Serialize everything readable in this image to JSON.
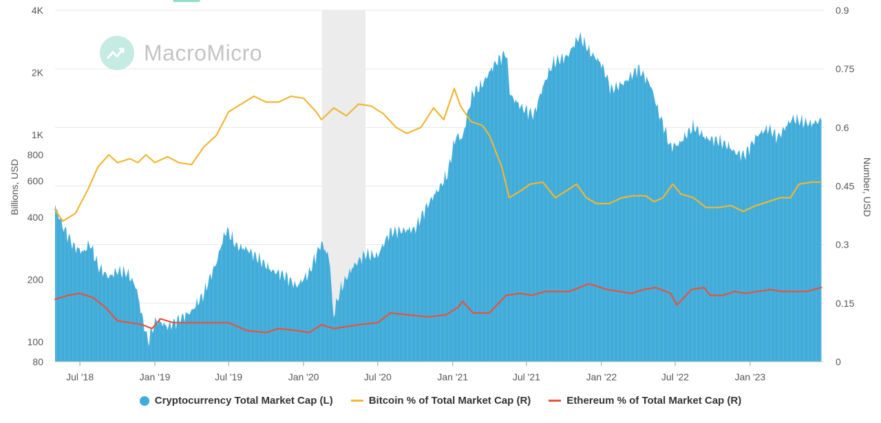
{
  "watermark": {
    "brand": "MacroMicro"
  },
  "colors": {
    "market_cap": "#41acd9",
    "bitcoin": "#f0b634",
    "ethereum": "#e8523b",
    "shade": "#ececec",
    "grid": "#e6e6e6"
  },
  "chart_data": {
    "type": "area",
    "title": "",
    "x_range": [
      "2018-05",
      "2023-06"
    ],
    "x_ticks": [
      {
        "date": "2018-07",
        "label": "Jul '18"
      },
      {
        "date": "2019-01",
        "label": "Jan '19"
      },
      {
        "date": "2019-07",
        "label": "Jul '19"
      },
      {
        "date": "2020-01",
        "label": "Jan '20"
      },
      {
        "date": "2020-07",
        "label": "Jul '20"
      },
      {
        "date": "2021-01",
        "label": "Jan '21"
      },
      {
        "date": "2021-07",
        "label": "Jul '21"
      },
      {
        "date": "2022-01",
        "label": "Jan '22"
      },
      {
        "date": "2022-07",
        "label": "Jul '22"
      },
      {
        "date": "2023-01",
        "label": "Jan '23"
      }
    ],
    "left_axis": {
      "label": "Billions, USD",
      "scale": "log",
      "range": [
        80,
        4000
      ],
      "ticks": [
        {
          "value": 80,
          "label": "80"
        },
        {
          "value": 100,
          "label": "100"
        },
        {
          "value": 200,
          "label": "200"
        },
        {
          "value": 400,
          "label": "400"
        },
        {
          "value": 600,
          "label": "600"
        },
        {
          "value": 800,
          "label": "800"
        },
        {
          "value": 1000,
          "label": "1K"
        },
        {
          "value": 2000,
          "label": "2K"
        },
        {
          "value": 4000,
          "label": "4K"
        }
      ]
    },
    "right_axis": {
      "label": "Number, USD",
      "scale": "linear",
      "range": [
        0,
        0.9
      ],
      "ticks": [
        {
          "value": 0,
          "label": "0"
        },
        {
          "value": 0.15,
          "label": "0.15"
        },
        {
          "value": 0.3,
          "label": "0.3"
        },
        {
          "value": 0.45,
          "label": "0.45"
        },
        {
          "value": 0.6,
          "label": "0.6"
        },
        {
          "value": 0.75,
          "label": "0.75"
        },
        {
          "value": 0.9,
          "label": "0.9"
        }
      ]
    },
    "shaded_region": {
      "start": "2020-02-15",
      "end": "2020-06-01"
    },
    "series": [
      {
        "name": "Cryptocurrency Total Market Cap (L)",
        "axis": "left",
        "style": "area",
        "color": "#41acd9",
        "points": [
          [
            "2018-05-01",
            450
          ],
          [
            "2018-05-20",
            360
          ],
          [
            "2018-06-15",
            290
          ],
          [
            "2018-07-10",
            270
          ],
          [
            "2018-07-25",
            300
          ],
          [
            "2018-08-15",
            230
          ],
          [
            "2018-09-10",
            205
          ],
          [
            "2018-10-01",
            220
          ],
          [
            "2018-10-25",
            215
          ],
          [
            "2018-11-15",
            185
          ],
          [
            "2018-12-01",
            130
          ],
          [
            "2018-12-15",
            100
          ],
          [
            "2019-01-05",
            128
          ],
          [
            "2019-02-01",
            118
          ],
          [
            "2019-03-01",
            128
          ],
          [
            "2019-04-01",
            140
          ],
          [
            "2019-05-01",
            170
          ],
          [
            "2019-06-01",
            240
          ],
          [
            "2019-06-26",
            350
          ],
          [
            "2019-07-20",
            290
          ],
          [
            "2019-08-15",
            280
          ],
          [
            "2019-09-15",
            250
          ],
          [
            "2019-10-15",
            220
          ],
          [
            "2019-11-15",
            210
          ],
          [
            "2019-12-15",
            185
          ],
          [
            "2020-01-15",
            215
          ],
          [
            "2020-02-14",
            300
          ],
          [
            "2020-03-05",
            250
          ],
          [
            "2020-03-13",
            130
          ],
          [
            "2020-04-01",
            180
          ],
          [
            "2020-05-01",
            230
          ],
          [
            "2020-06-01",
            265
          ],
          [
            "2020-07-01",
            260
          ],
          [
            "2020-08-01",
            340
          ],
          [
            "2020-09-01",
            345
          ],
          [
            "2020-10-01",
            350
          ],
          [
            "2020-11-01",
            460
          ],
          [
            "2020-12-01",
            560
          ],
          [
            "2020-12-20",
            650
          ],
          [
            "2021-01-10",
            1000
          ],
          [
            "2021-01-25",
            950
          ],
          [
            "2021-02-20",
            1600
          ],
          [
            "2021-03-15",
            1750
          ],
          [
            "2021-04-14",
            2200
          ],
          [
            "2021-05-12",
            2500
          ],
          [
            "2021-05-22",
            1550
          ],
          [
            "2021-06-20",
            1350
          ],
          [
            "2021-07-20",
            1250
          ],
          [
            "2021-08-15",
            1800
          ],
          [
            "2021-09-06",
            2250
          ],
          [
            "2021-10-10",
            2400
          ],
          [
            "2021-11-08",
            3000
          ],
          [
            "2021-12-05",
            2500
          ],
          [
            "2022-01-01",
            2200
          ],
          [
            "2022-01-25",
            1650
          ],
          [
            "2022-03-01",
            1800
          ],
          [
            "2022-04-01",
            2100
          ],
          [
            "2022-05-01",
            1750
          ],
          [
            "2022-05-20",
            1300
          ],
          [
            "2022-06-18",
            880
          ],
          [
            "2022-07-10",
            900
          ],
          [
            "2022-08-15",
            1100
          ],
          [
            "2022-09-15",
            960
          ],
          [
            "2022-10-15",
            940
          ],
          [
            "2022-11-10",
            880
          ],
          [
            "2022-11-25",
            820
          ],
          [
            "2022-12-20",
            800
          ],
          [
            "2023-01-20",
            1000
          ],
          [
            "2023-02-15",
            1080
          ],
          [
            "2023-03-10",
            970
          ],
          [
            "2023-04-15",
            1200
          ],
          [
            "2023-05-15",
            1150
          ],
          [
            "2023-06-01",
            1130
          ],
          [
            "2023-06-25",
            1180
          ]
        ]
      },
      {
        "name": "Bitcoin % of Total Market Cap (R)",
        "axis": "right",
        "style": "line",
        "color": "#f0b634",
        "points": [
          [
            "2018-05-01",
            0.39
          ],
          [
            "2018-05-20",
            0.36
          ],
          [
            "2018-06-20",
            0.38
          ],
          [
            "2018-07-20",
            0.44
          ],
          [
            "2018-08-15",
            0.5
          ],
          [
            "2018-09-10",
            0.53
          ],
          [
            "2018-10-01",
            0.51
          ],
          [
            "2018-11-01",
            0.52
          ],
          [
            "2018-11-20",
            0.51
          ],
          [
            "2018-12-10",
            0.53
          ],
          [
            "2019-01-01",
            0.51
          ],
          [
            "2019-02-01",
            0.525
          ],
          [
            "2019-03-01",
            0.51
          ],
          [
            "2019-04-01",
            0.505
          ],
          [
            "2019-05-01",
            0.55
          ],
          [
            "2019-06-01",
            0.58
          ],
          [
            "2019-07-01",
            0.64
          ],
          [
            "2019-08-01",
            0.66
          ],
          [
            "2019-09-01",
            0.68
          ],
          [
            "2019-10-01",
            0.665
          ],
          [
            "2019-11-01",
            0.665
          ],
          [
            "2019-12-01",
            0.68
          ],
          [
            "2020-01-01",
            0.675
          ],
          [
            "2020-02-01",
            0.64
          ],
          [
            "2020-02-14",
            0.62
          ],
          [
            "2020-03-15",
            0.65
          ],
          [
            "2020-04-15",
            0.63
          ],
          [
            "2020-05-15",
            0.66
          ],
          [
            "2020-06-15",
            0.655
          ],
          [
            "2020-07-15",
            0.635
          ],
          [
            "2020-08-15",
            0.6
          ],
          [
            "2020-09-10",
            0.585
          ],
          [
            "2020-10-15",
            0.6
          ],
          [
            "2020-11-15",
            0.65
          ],
          [
            "2020-12-10",
            0.62
          ],
          [
            "2021-01-05",
            0.7
          ],
          [
            "2021-01-20",
            0.655
          ],
          [
            "2021-02-15",
            0.615
          ],
          [
            "2021-03-15",
            0.605
          ],
          [
            "2021-04-01",
            0.58
          ],
          [
            "2021-05-01",
            0.5
          ],
          [
            "2021-05-20",
            0.42
          ],
          [
            "2021-06-20",
            0.44
          ],
          [
            "2021-07-10",
            0.455
          ],
          [
            "2021-08-10",
            0.46
          ],
          [
            "2021-09-10",
            0.42
          ],
          [
            "2021-10-10",
            0.44
          ],
          [
            "2021-11-01",
            0.455
          ],
          [
            "2021-11-25",
            0.42
          ],
          [
            "2021-12-20",
            0.405
          ],
          [
            "2022-01-20",
            0.405
          ],
          [
            "2022-02-20",
            0.42
          ],
          [
            "2022-03-20",
            0.425
          ],
          [
            "2022-04-20",
            0.425
          ],
          [
            "2022-05-10",
            0.41
          ],
          [
            "2022-06-01",
            0.42
          ],
          [
            "2022-06-25",
            0.455
          ],
          [
            "2022-07-15",
            0.43
          ],
          [
            "2022-08-15",
            0.42
          ],
          [
            "2022-09-15",
            0.395
          ],
          [
            "2022-10-15",
            0.395
          ],
          [
            "2022-11-15",
            0.4
          ],
          [
            "2022-12-15",
            0.385
          ],
          [
            "2023-01-15",
            0.4
          ],
          [
            "2023-02-15",
            0.41
          ],
          [
            "2023-03-15",
            0.42
          ],
          [
            "2023-04-10",
            0.42
          ],
          [
            "2023-05-01",
            0.455
          ],
          [
            "2023-06-01",
            0.46
          ],
          [
            "2023-06-25",
            0.46
          ]
        ]
      },
      {
        "name": "Ethereum % of Total Market Cap (R)",
        "axis": "right",
        "style": "line",
        "color": "#e8523b",
        "points": [
          [
            "2018-05-01",
            0.16
          ],
          [
            "2018-06-01",
            0.17
          ],
          [
            "2018-07-01",
            0.175
          ],
          [
            "2018-08-01",
            0.165
          ],
          [
            "2018-09-01",
            0.14
          ],
          [
            "2018-10-01",
            0.105
          ],
          [
            "2018-11-01",
            0.1
          ],
          [
            "2018-12-01",
            0.095
          ],
          [
            "2018-12-25",
            0.085
          ],
          [
            "2019-01-15",
            0.11
          ],
          [
            "2019-02-15",
            0.1
          ],
          [
            "2019-04-01",
            0.1
          ],
          [
            "2019-05-15",
            0.1
          ],
          [
            "2019-07-01",
            0.1
          ],
          [
            "2019-08-15",
            0.08
          ],
          [
            "2019-10-01",
            0.075
          ],
          [
            "2019-11-01",
            0.085
          ],
          [
            "2019-12-15",
            0.08
          ],
          [
            "2020-01-15",
            0.075
          ],
          [
            "2020-02-14",
            0.095
          ],
          [
            "2020-03-15",
            0.085
          ],
          [
            "2020-05-15",
            0.095
          ],
          [
            "2020-07-01",
            0.1
          ],
          [
            "2020-08-01",
            0.125
          ],
          [
            "2020-09-15",
            0.12
          ],
          [
            "2020-11-01",
            0.115
          ],
          [
            "2020-12-15",
            0.12
          ],
          [
            "2021-01-15",
            0.14
          ],
          [
            "2021-01-25",
            0.155
          ],
          [
            "2021-02-20",
            0.125
          ],
          [
            "2021-04-01",
            0.125
          ],
          [
            "2021-05-12",
            0.17
          ],
          [
            "2021-06-15",
            0.175
          ],
          [
            "2021-07-15",
            0.17
          ],
          [
            "2021-08-15",
            0.18
          ],
          [
            "2021-09-15",
            0.18
          ],
          [
            "2021-10-15",
            0.18
          ],
          [
            "2021-11-08",
            0.19
          ],
          [
            "2021-12-01",
            0.2
          ],
          [
            "2022-01-15",
            0.185
          ],
          [
            "2022-02-15",
            0.18
          ],
          [
            "2022-03-15",
            0.175
          ],
          [
            "2022-04-15",
            0.185
          ],
          [
            "2022-05-15",
            0.19
          ],
          [
            "2022-06-20",
            0.175
          ],
          [
            "2022-07-05",
            0.145
          ],
          [
            "2022-08-10",
            0.185
          ],
          [
            "2022-09-10",
            0.19
          ],
          [
            "2022-09-25",
            0.17
          ],
          [
            "2022-10-25",
            0.17
          ],
          [
            "2022-11-25",
            0.18
          ],
          [
            "2022-12-20",
            0.175
          ],
          [
            "2023-01-20",
            0.18
          ],
          [
            "2023-02-20",
            0.185
          ],
          [
            "2023-03-20",
            0.18
          ],
          [
            "2023-04-20",
            0.18
          ],
          [
            "2023-05-20",
            0.18
          ],
          [
            "2023-06-25",
            0.19
          ]
        ]
      }
    ]
  }
}
